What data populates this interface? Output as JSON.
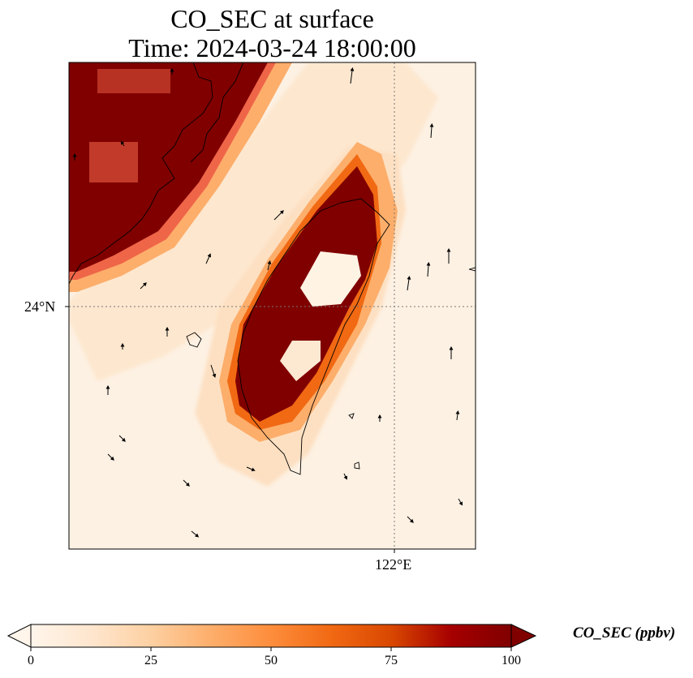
{
  "title_line1": "CO_SEC at surface",
  "title_line2": "Time: 2024-03-24 18:00:00",
  "lat_tick": "24°N",
  "lon_tick": "122°E",
  "colorbar": {
    "label": "CO_SEC (ppbv)",
    "ticks": [
      "0",
      "25",
      "50",
      "75",
      "100"
    ],
    "min": 0,
    "max": 100,
    "colormap": [
      "#fff5eb",
      "#fee6ce",
      "#fdd0a2",
      "#fdae6b",
      "#fd8d3c",
      "#f16913",
      "#d94801",
      "#a60000",
      "#800000"
    ]
  },
  "plot": {
    "background": "#fdf1e3",
    "high_color": "#800000",
    "gridline_style": "dotted"
  }
}
